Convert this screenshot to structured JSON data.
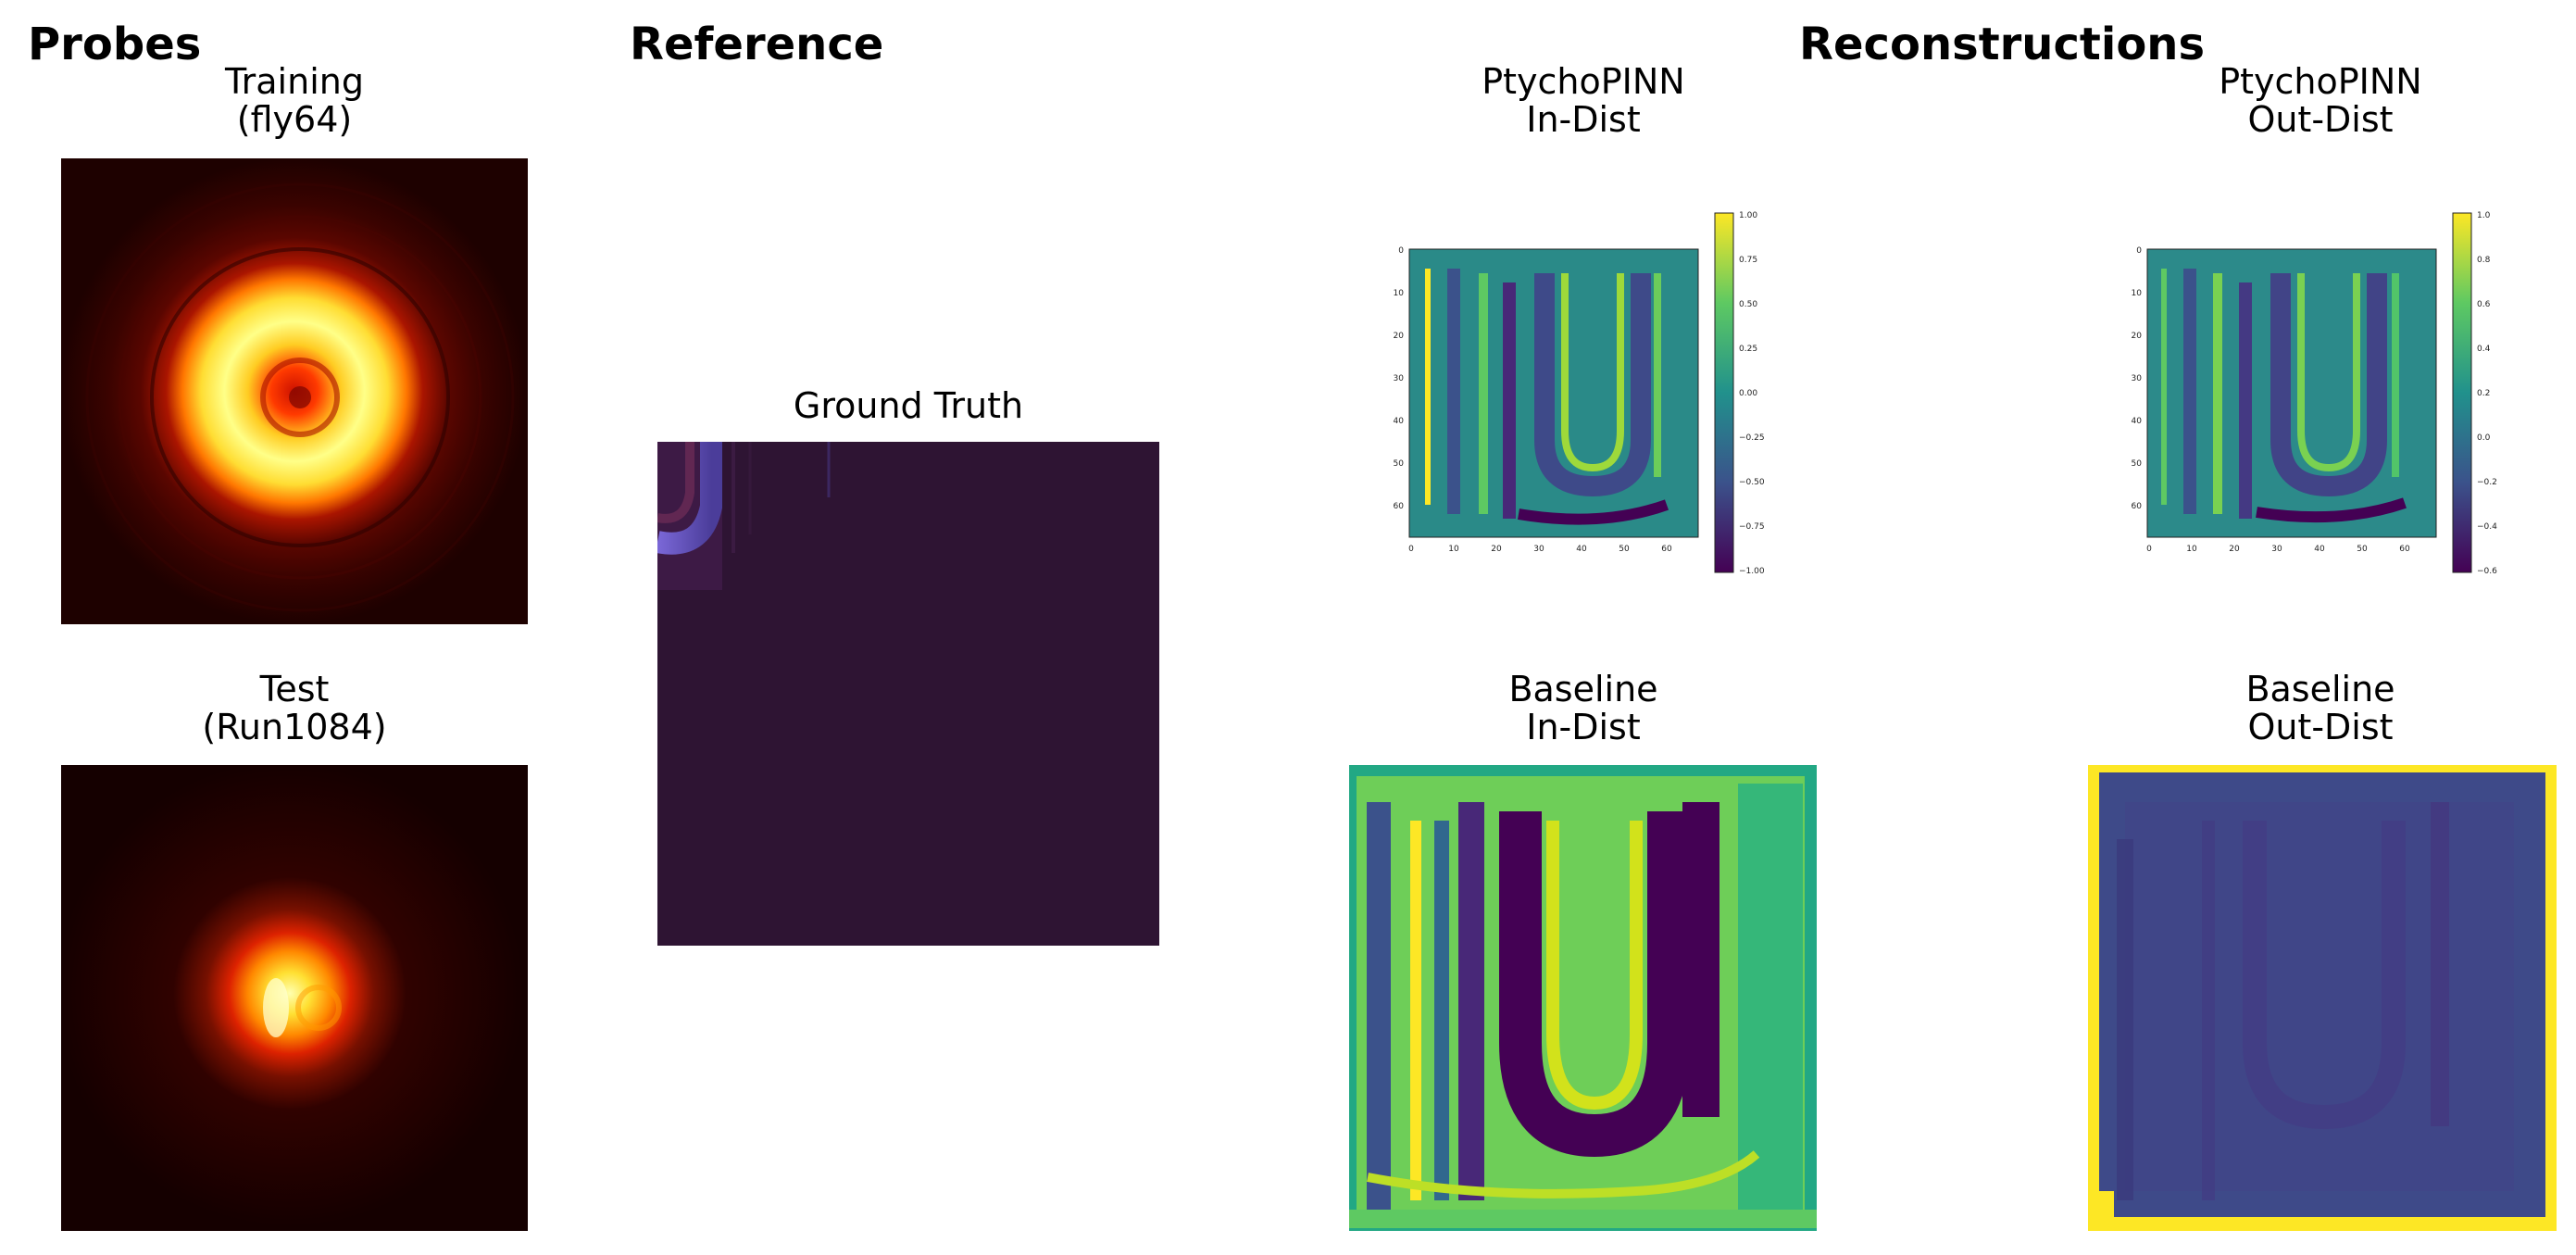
{
  "sections": {
    "probes": "Probes",
    "reference": "Reference",
    "reconstructions": "Reconstructions"
  },
  "panels": {
    "training": {
      "line1": "Training",
      "line2": "(fly64)"
    },
    "test": {
      "line1": "Test",
      "line2": "(Run1084)"
    },
    "ground_truth": {
      "line1": "Ground Truth"
    },
    "pinn_in": {
      "line1": "PtychoPINN",
      "line2": "In-Dist"
    },
    "pinn_out": {
      "line1": "PtychoPINN",
      "line2": "Out-Dist"
    },
    "base_in": {
      "line1": "Baseline",
      "line2": "In-Dist"
    },
    "base_out": {
      "line1": "Baseline",
      "line2": "Out-Dist"
    }
  },
  "axes": {
    "pinn_in": {
      "x_ticks": [
        "0",
        "10",
        "20",
        "30",
        "40",
        "50",
        "60"
      ],
      "y_ticks": [
        "0",
        "10",
        "20",
        "30",
        "40",
        "50",
        "60"
      ],
      "colorbar_ticks": [
        "1.00",
        "0.75",
        "0.50",
        "0.25",
        "0.00",
        "−0.25",
        "−0.50",
        "−0.75",
        "−1.00"
      ],
      "colorbar_range": [
        -1.0,
        1.0
      ]
    },
    "pinn_out": {
      "x_ticks": [
        "0",
        "10",
        "20",
        "30",
        "40",
        "50",
        "60"
      ],
      "y_ticks": [
        "0",
        "10",
        "20",
        "30",
        "40",
        "50",
        "60"
      ],
      "colorbar_ticks": [
        "1.0",
        "0.8",
        "0.6",
        "0.4",
        "0.2",
        "0.0",
        "−0.2",
        "−0.4",
        "−0.6"
      ],
      "colorbar_range": [
        -0.6,
        1.0
      ]
    }
  },
  "colors": {
    "viridis_dark": "#440154",
    "viridis_mid": "#21918c",
    "viridis_light": "#fde725",
    "probe_dark": "#1a0000",
    "probe_hot": "#ffff66",
    "gt_background": "#2e1433",
    "gt_stroke": "#6a5acd"
  }
}
